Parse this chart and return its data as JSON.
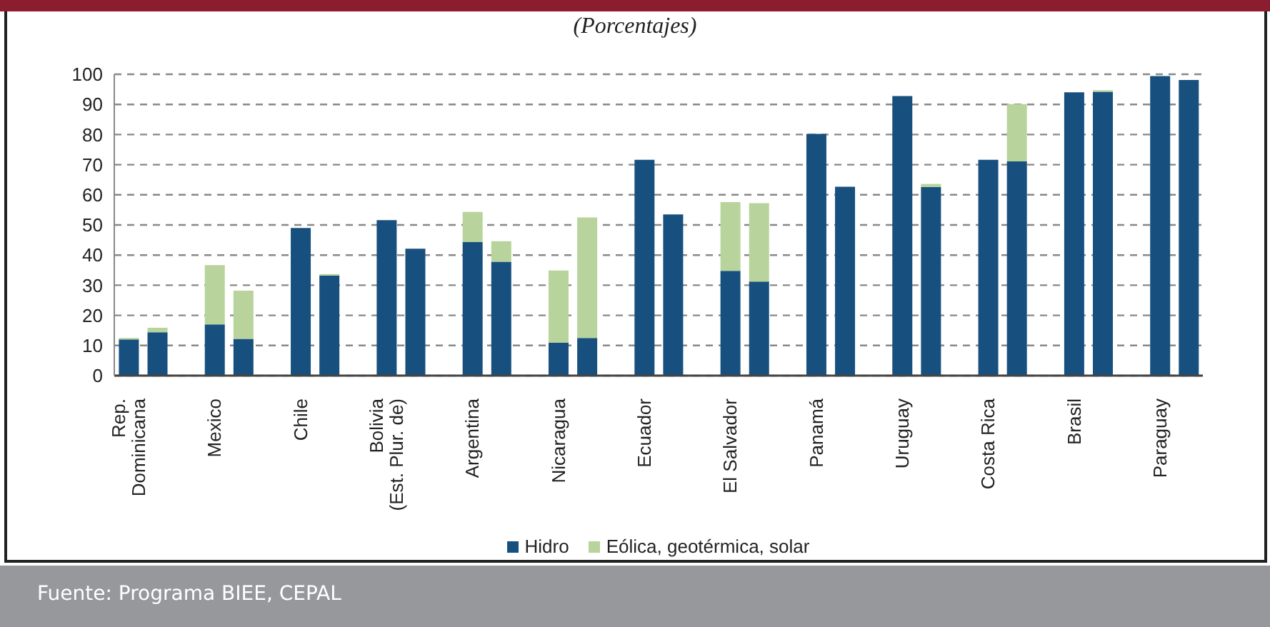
{
  "chart_data": {
    "type": "bar",
    "title": "(Porcentajes)",
    "stacked": true,
    "categories": [
      "Rep.\nDominicana",
      null,
      null,
      "Mexico",
      null,
      null,
      "Chile",
      null,
      null,
      "Bolivia\n(Est. Plur. de)",
      null,
      null,
      "Argentina",
      null,
      null,
      "Nicaragua",
      null,
      null,
      "Ecuador",
      null,
      null,
      "El Salvador",
      null,
      null,
      "Panamá",
      null,
      null,
      "Uruguay",
      null,
      null,
      "Costa Rica",
      null,
      null,
      "Brasil",
      null,
      null,
      "Paraguay",
      null
    ],
    "series": [
      {
        "name": "Hidro",
        "color": "#17507f",
        "values": [
          12,
          14.4,
          null,
          17,
          12.2,
          null,
          49,
          33.2,
          null,
          51.6,
          42.1,
          null,
          44.3,
          37.8,
          null,
          10.9,
          12.5,
          null,
          71.6,
          53.5,
          null,
          34.8,
          31.2,
          null,
          80.2,
          62.7,
          null,
          92.8,
          62.6,
          null,
          71.6,
          71.1,
          null,
          94,
          94.2,
          null,
          99.4,
          98.1
        ]
      },
      {
        "name": "Eólica, geotérmica, solar",
        "color": "#b8d49c",
        "values": [
          0.5,
          1.5,
          null,
          19.7,
          16,
          null,
          0,
          0.5,
          null,
          0,
          0,
          null,
          10,
          6.8,
          null,
          24,
          40,
          null,
          0,
          0,
          null,
          22.8,
          26,
          null,
          0,
          0,
          null,
          0,
          1,
          null,
          0,
          19,
          null,
          0,
          0.5,
          null,
          0,
          0
        ]
      }
    ],
    "ylim": [
      0,
      100
    ],
    "yticks": [
      0,
      10,
      20,
      30,
      40,
      50,
      60,
      70,
      80,
      90,
      100
    ],
    "grid": "y",
    "legend": "bottom",
    "annotations": [
      "Fuente: Programa BIEE, CEPAL"
    ]
  }
}
